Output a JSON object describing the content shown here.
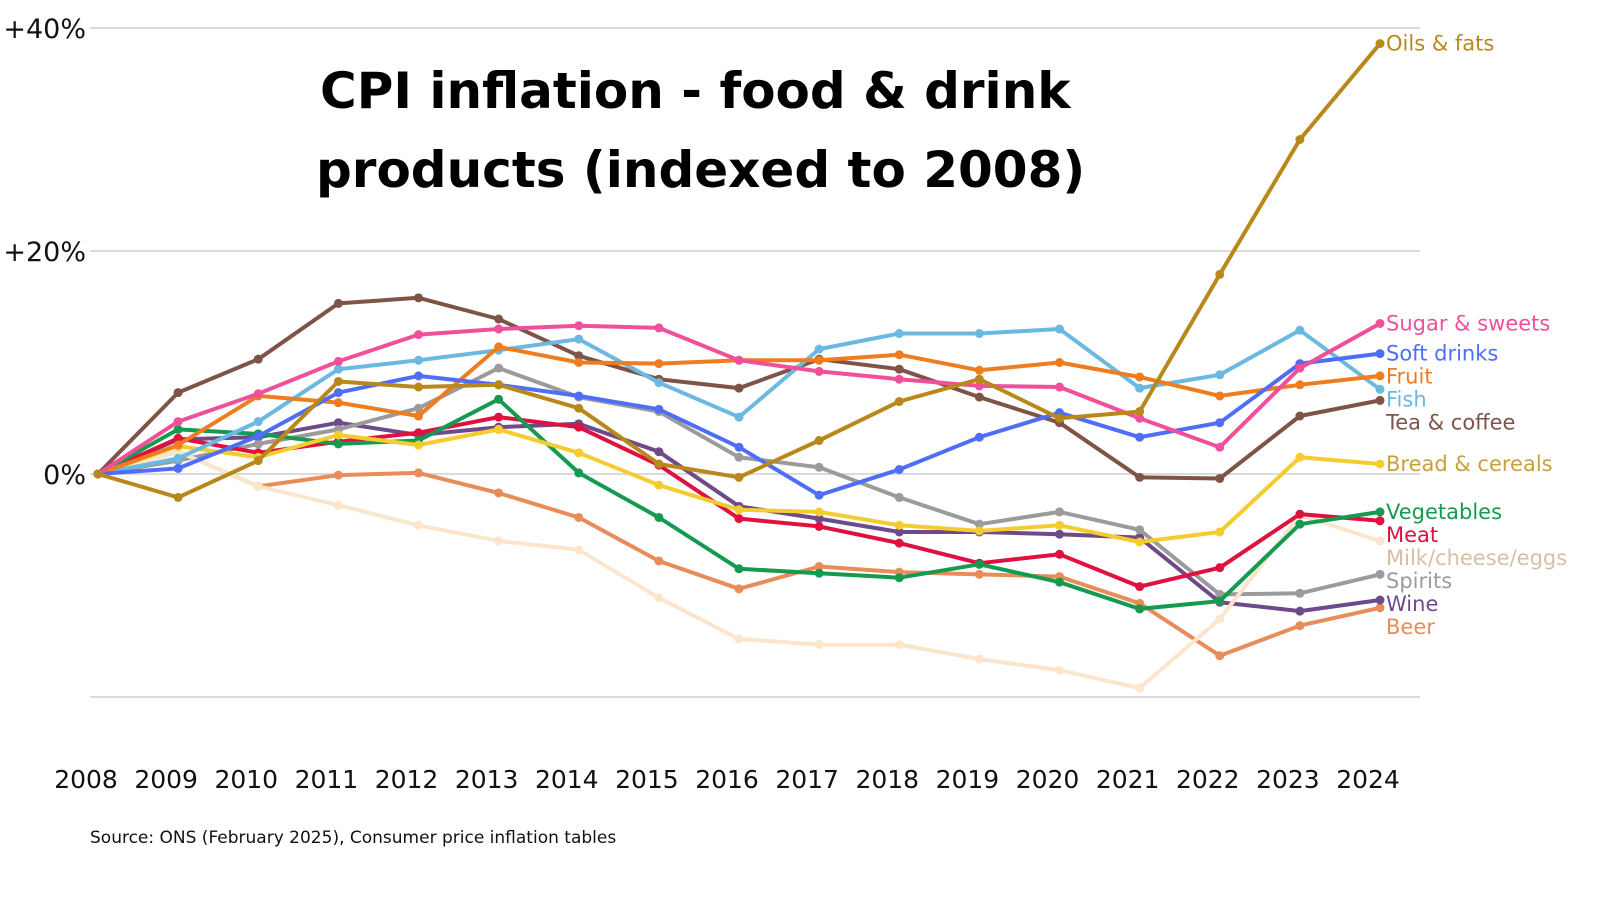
{
  "chart_data": {
    "type": "line",
    "title_lines": [
      "CPI inflation - food & drink",
      "products (indexed to 2008)"
    ],
    "source": "Source: ONS (February 2025), Consumer price inflation tables",
    "xlabel": "",
    "ylabel": "",
    "x": [
      "2008",
      "2009",
      "2010",
      "2011",
      "2012",
      "2013",
      "2014",
      "2015",
      "2016",
      "2017",
      "2018",
      "2019",
      "2020",
      "2021",
      "2022",
      "2023",
      "2024"
    ],
    "ylim": [
      -20,
      40
    ],
    "yticks": [
      {
        "value": 40,
        "label": "+40%"
      },
      {
        "value": 20,
        "label": "+20%"
      },
      {
        "value": 0,
        "label": "0%"
      },
      {
        "value": -20,
        "label": ""
      }
    ],
    "grid": true,
    "legend": "inline-right",
    "series": [
      {
        "name": "Oils & fats",
        "color": "#b8891a",
        "label_color": "#b8891a",
        "values": [
          0,
          -2.1,
          1.2,
          8.3,
          7.8,
          8.0,
          5.9,
          0.9,
          -0.3,
          3.0,
          6.5,
          8.5,
          5.0,
          5.6,
          17.9,
          30.0,
          38.6
        ]
      },
      {
        "name": "Sugar & sweets",
        "color": "#f0509a",
        "label_color": "#f0509a",
        "values": [
          0,
          4.7,
          7.2,
          10.1,
          12.5,
          13.0,
          13.3,
          13.1,
          10.2,
          9.2,
          8.5,
          7.9,
          7.8,
          5.0,
          2.4,
          9.5,
          13.5
        ]
      },
      {
        "name": "Soft drinks",
        "color": "#4f6ef7",
        "label_color": "#4f6ef7",
        "values": [
          0,
          0.5,
          3.4,
          7.3,
          8.8,
          8.0,
          7.0,
          5.8,
          2.4,
          -1.9,
          0.4,
          3.3,
          5.5,
          3.3,
          4.6,
          9.9,
          10.8
        ]
      },
      {
        "name": "Fruit",
        "color": "#f07c20",
        "label_color": "#f07c20",
        "values": [
          0,
          2.6,
          7.0,
          6.4,
          5.2,
          11.4,
          10.0,
          9.9,
          10.2,
          10.2,
          10.7,
          9.3,
          10.0,
          8.7,
          7.0,
          8.0,
          8.8
        ]
      },
      {
        "name": "Fish",
        "color": "#6bb8e0",
        "label_color": "#6bb8e0",
        "values": [
          0,
          1.4,
          4.7,
          9.4,
          10.2,
          11.1,
          12.1,
          8.2,
          5.1,
          11.2,
          12.6,
          12.6,
          13.0,
          7.7,
          8.9,
          12.9,
          7.6
        ]
      },
      {
        "name": "Tea & coffee",
        "color": "#7f5448",
        "label_color": "#7f5448",
        "values": [
          0,
          7.3,
          10.3,
          15.3,
          15.8,
          13.9,
          10.6,
          8.5,
          7.7,
          10.3,
          9.4,
          6.9,
          4.6,
          -0.3,
          -0.4,
          5.2,
          6.6
        ]
      },
      {
        "name": "Bread & cereals",
        "color": "#f5cc30",
        "label_color": "#c9a13c",
        "values": [
          0,
          2.5,
          1.5,
          3.5,
          2.6,
          4.0,
          1.9,
          -1.0,
          -3.2,
          -3.4,
          -4.6,
          -5.1,
          -4.6,
          -6.1,
          -5.2,
          1.5,
          0.9
        ]
      },
      {
        "name": "Vegetables",
        "color": "#169a50",
        "label_color": "#169a50",
        "values": [
          0,
          4.0,
          3.6,
          2.7,
          3.0,
          6.7,
          0.1,
          -3.9,
          -8.5,
          -8.9,
          -9.3,
          -8.1,
          -9.7,
          -12.1,
          -11.4,
          -4.5,
          -3.4
        ]
      },
      {
        "name": "Meat",
        "color": "#e0103f",
        "label_color": "#e0103f",
        "values": [
          0,
          3.2,
          1.9,
          2.9,
          3.7,
          5.1,
          4.2,
          0.8,
          -4.0,
          -4.7,
          -6.2,
          -8.0,
          -7.2,
          -10.1,
          -8.4,
          -3.6,
          -4.2
        ]
      },
      {
        "name": "Milk/cheese/eggs",
        "color": "#fbe5cc",
        "label_color": "#d8bea2",
        "values": [
          0,
          2.0,
          -1.1,
          -2.8,
          -4.6,
          -6.0,
          -6.8,
          -11.1,
          -14.8,
          -15.3,
          -15.3,
          -16.6,
          -17.6,
          -19.2,
          -13.0,
          -3.7,
          -6.0
        ]
      },
      {
        "name": "Spirits",
        "color": "#9b9b9b",
        "label_color": "#9b9b9b",
        "values": [
          0,
          1.2,
          2.7,
          4.0,
          5.9,
          9.5,
          6.9,
          5.6,
          1.5,
          0.6,
          -2.1,
          -4.5,
          -3.4,
          -5.0,
          -10.8,
          -10.7,
          -9.0
        ]
      },
      {
        "name": "Wine",
        "color": "#6e4a8a",
        "label_color": "#6e4a8a",
        "values": [
          0,
          3.1,
          3.3,
          4.6,
          3.5,
          4.2,
          4.5,
          2.0,
          -2.9,
          -4.0,
          -5.2,
          -5.2,
          -5.4,
          -5.7,
          -11.5,
          -12.3,
          -11.3
        ]
      },
      {
        "name": "Beer",
        "color": "#e88c5a",
        "label_color": "#e88c5a",
        "values": [
          0,
          2.0,
          -1.1,
          -0.1,
          0.1,
          -1.7,
          -3.9,
          -7.8,
          -10.3,
          -8.3,
          -8.8,
          -9.0,
          -9.2,
          -11.6,
          -16.3,
          -13.6,
          -12.0
        ]
      }
    ]
  }
}
